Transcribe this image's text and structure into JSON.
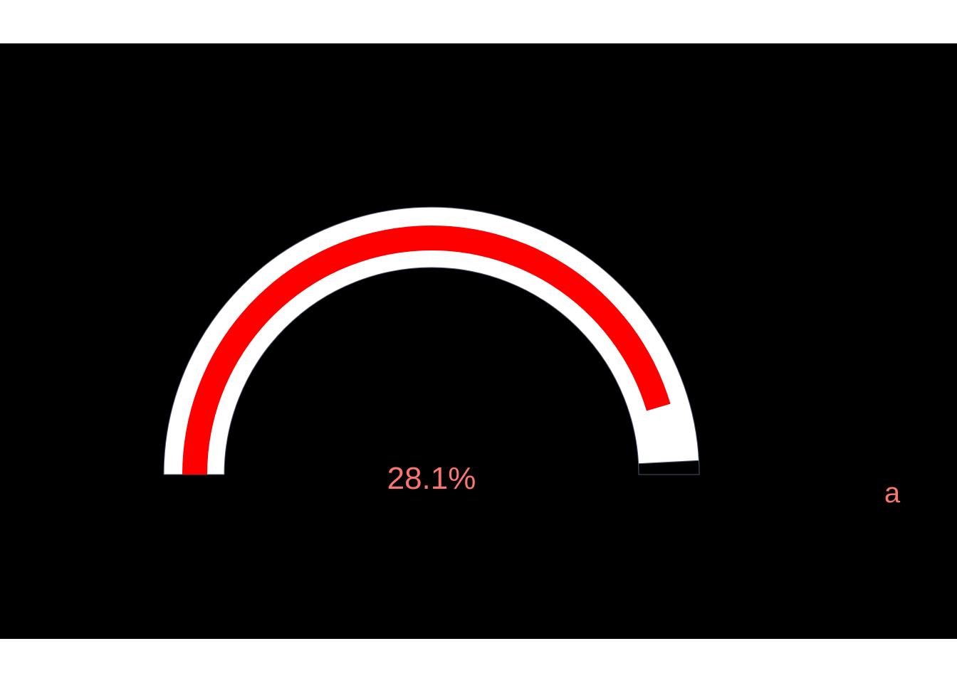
{
  "chart_data": {
    "type": "gauge",
    "value": 28.1,
    "min": 0,
    "max": 100,
    "label": "28.1%",
    "legend": "a",
    "colors": {
      "panel_background": "#000000",
      "page_background": "#ffffff",
      "track": "#ffffff",
      "bar": "#ff0000",
      "text": "#f8766d",
      "edge": "#4a5568"
    }
  }
}
